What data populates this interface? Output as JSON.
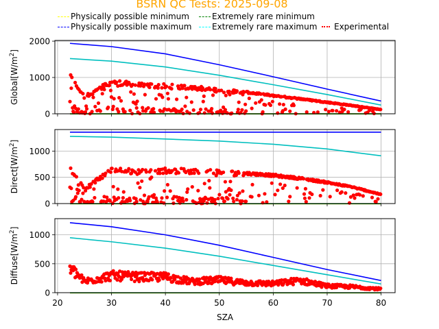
{
  "title": "BSRN QC Tests: 2025-09-08",
  "legend": [
    {
      "label": "Physically possible minimum",
      "color": "#ffff00",
      "style": "dashed"
    },
    {
      "label": "Extremely rare minimum",
      "color": "#008000",
      "style": "dashed"
    },
    {
      "label": "Physically possible maximum",
      "color": "#0000ff",
      "style": "dashed"
    },
    {
      "label": "Extremely rare maximum",
      "color": "#00ffff",
      "style": "dashed"
    },
    {
      "label": "Experimental",
      "color": "#ff0000",
      "style": "dotted"
    }
  ],
  "chart_data": [
    {
      "type": "scatter",
      "panel": "global",
      "ylabel": "Global[W/m²]",
      "ylabel_main": "Global[W/m",
      "xlim": [
        19.5,
        82.6
      ],
      "ylim": [
        0,
        2020
      ],
      "yticks": [
        0,
        1000,
        2000
      ],
      "grid": true,
      "series": [
        {
          "name": "Physically possible minimum",
          "color": "#ffff00",
          "x": [
            22.3,
            80
          ],
          "y": [
            -4,
            -4
          ]
        },
        {
          "name": "Extremely rare minimum",
          "color": "#008000",
          "x": [
            22.3,
            80
          ],
          "y": [
            -2,
            -2
          ]
        },
        {
          "name": "Physically possible maximum",
          "color": "#0000ff",
          "x": [
            22.3,
            30,
            40,
            50,
            60,
            70,
            80
          ],
          "y": [
            1940,
            1850,
            1650,
            1350,
            1020,
            680,
            350
          ]
        },
        {
          "name": "Extremely rare maximum",
          "color": "#00bfbf",
          "x": [
            22.3,
            30,
            40,
            50,
            60,
            70,
            80
          ],
          "y": [
            1520,
            1450,
            1290,
            1060,
            800,
            530,
            240
          ]
        },
        {
          "name": "Experimental",
          "color": "#ff0000",
          "envelope": {
            "x": [
              22.3,
              25,
              30,
              35,
              40,
              45,
              50,
              55,
              60,
              65,
              70,
              75,
              80
            ],
            "y": [
              1100,
              500,
              950,
              850,
              820,
              780,
              700,
              620,
              520,
              430,
              330,
              230,
              120
            ]
          }
        }
      ]
    },
    {
      "type": "scatter",
      "panel": "direct",
      "ylabel": "Direct[W/m²]",
      "ylabel_main": "Direct[W/m",
      "xlim": [
        19.5,
        82.6
      ],
      "ylim": [
        0,
        1410
      ],
      "yticks": [
        0,
        500,
        1000
      ],
      "grid": true,
      "series": [
        {
          "name": "Physically possible minimum",
          "color": "#ffff00",
          "x": [
            22.3,
            80
          ],
          "y": [
            -4,
            -4
          ]
        },
        {
          "name": "Extremely rare minimum",
          "color": "#008000",
          "x": [
            22.3,
            80
          ],
          "y": [
            -2,
            -2
          ]
        },
        {
          "name": "Physically possible maximum",
          "color": "#0000ff",
          "x": [
            22.3,
            80
          ],
          "y": [
            1360,
            1360
          ]
        },
        {
          "name": "Extremely rare maximum",
          "color": "#00bfbf",
          "x": [
            22.3,
            30,
            40,
            50,
            60,
            70,
            80
          ],
          "y": [
            1280,
            1265,
            1230,
            1190,
            1130,
            1040,
            910
          ]
        },
        {
          "name": "Experimental",
          "color": "#ff0000",
          "envelope": {
            "x": [
              22.3,
              25,
              30,
              35,
              40,
              45,
              50,
              55,
              60,
              65,
              70,
              75,
              80
            ],
            "y": [
              700,
              300,
              700,
              650,
              680,
              660,
              650,
              600,
              560,
              500,
              420,
              320,
              180
            ]
          }
        }
      ]
    },
    {
      "type": "scatter",
      "panel": "diffuse",
      "ylabel": "Diffuse[W/m²]",
      "ylabel_main": "Diffuse[W/m",
      "xlabel": "SZA",
      "xlim": [
        19.5,
        82.6
      ],
      "ylim": [
        0,
        1280
      ],
      "yticks": [
        0,
        500,
        1000
      ],
      "xticks": [
        20,
        30,
        40,
        50,
        60,
        70,
        80
      ],
      "grid": true,
      "series": [
        {
          "name": "Physically possible minimum",
          "color": "#ffff00",
          "x": [
            22.3,
            80
          ],
          "y": [
            -4,
            -4
          ]
        },
        {
          "name": "Extremely rare minimum",
          "color": "#008000",
          "x": [
            22.3,
            80
          ],
          "y": [
            -2,
            -2
          ]
        },
        {
          "name": "Physically possible maximum",
          "color": "#0000ff",
          "x": [
            22.3,
            30,
            40,
            50,
            60,
            70,
            80
          ],
          "y": [
            1210,
            1140,
            1000,
            820,
            610,
            400,
            210
          ]
        },
        {
          "name": "Extremely rare maximum",
          "color": "#00bfbf",
          "x": [
            22.3,
            30,
            40,
            50,
            60,
            70,
            80
          ],
          "y": [
            950,
            880,
            770,
            630,
            470,
            310,
            150
          ]
        },
        {
          "name": "Experimental",
          "color": "#ff0000",
          "envelope": {
            "x": [
              22.3,
              25,
              30,
              35,
              40,
              45,
              50,
              55,
              60,
              65,
              70,
              75,
              80
            ],
            "y": [
              550,
              250,
              380,
              350,
              350,
              250,
              280,
              220,
              200,
              270,
              150,
              130,
              80
            ]
          }
        }
      ]
    }
  ],
  "xticks": [
    "20",
    "30",
    "40",
    "50",
    "60",
    "70",
    "80"
  ],
  "xlabel": "SZA",
  "ylabel_sup": "2"
}
